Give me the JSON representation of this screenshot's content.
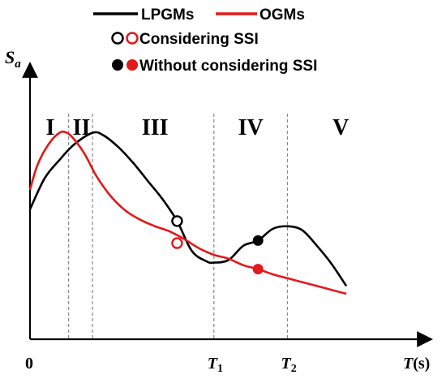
{
  "chart_data": {
    "type": "line",
    "title": "",
    "xlabel": "T(s)",
    "ylabel": "Sa",
    "origin_label": "0",
    "x_ticks": [
      {
        "label": "T1",
        "main": "T",
        "sub": "1",
        "x": 5.0
      },
      {
        "label": "T2",
        "main": "T",
        "sub": "2",
        "x": 7.0
      }
    ],
    "xlim": [
      0,
      10
    ],
    "ylim": [
      0,
      10
    ],
    "grid": false,
    "legend_placement": "top",
    "legend": [
      {
        "kind": "line",
        "name": "LPGMs",
        "color": "#000000"
      },
      {
        "kind": "line",
        "name": "OGMs",
        "color": "#e3191c"
      },
      {
        "kind": "marker",
        "name": "Considering SSI",
        "fill": "hollow"
      },
      {
        "kind": "marker",
        "name": "Without considering SSI",
        "fill": "filled"
      }
    ],
    "regions": [
      {
        "label": "I",
        "x": 0.55
      },
      {
        "label": "II",
        "x": 1.4
      },
      {
        "label": "III",
        "x": 3.4
      },
      {
        "label": "IV",
        "x": 6.0
      },
      {
        "label": "V",
        "x": 8.45
      }
    ],
    "dividers": [
      1.05,
      1.7,
      5.0,
      7.0
    ],
    "series": [
      {
        "name": "LPGMs",
        "color": "#000000",
        "x": [
          0,
          0.4,
          0.8,
          1.2,
          1.7,
          2.0,
          2.4,
          2.8,
          3.2,
          3.6,
          4.0,
          4.4,
          4.8,
          5.0,
          5.4,
          5.8,
          6.2,
          6.6,
          7.0,
          7.4,
          7.8,
          8.2,
          8.6
        ],
        "y": [
          5.0,
          6.2,
          6.9,
          7.5,
          7.95,
          7.85,
          7.4,
          6.8,
          6.1,
          5.4,
          4.55,
          3.4,
          3.0,
          2.95,
          3.05,
          3.6,
          3.8,
          4.25,
          4.35,
          4.2,
          3.6,
          2.9,
          2.05
        ]
      },
      {
        "name": "OGMs",
        "color": "#e3191c",
        "x": [
          0,
          0.2,
          0.5,
          0.8,
          1.0,
          1.2,
          1.5,
          1.8,
          2.2,
          2.6,
          3.0,
          3.4,
          3.8,
          4.2,
          4.6,
          5.0,
          5.4,
          5.8,
          6.2,
          6.6,
          7.0,
          7.4,
          7.8,
          8.2,
          8.6
        ],
        "y": [
          5.75,
          6.7,
          7.5,
          7.95,
          7.95,
          7.7,
          7.1,
          6.3,
          5.5,
          4.95,
          4.6,
          4.35,
          4.15,
          3.85,
          3.5,
          3.25,
          3.1,
          2.85,
          2.7,
          2.5,
          2.35,
          2.2,
          2.05,
          1.9,
          1.75
        ]
      }
    ],
    "points": [
      {
        "series": "LPGMs",
        "condition": "Considering SSI",
        "x": 4.0,
        "y": 4.55,
        "fill": "hollow"
      },
      {
        "series": "OGMs",
        "condition": "Considering SSI",
        "x": 4.0,
        "y": 3.7,
        "fill": "hollow"
      },
      {
        "series": "LPGMs",
        "condition": "Without considering SSI",
        "x": 6.2,
        "y": 3.8,
        "fill": "filled"
      },
      {
        "series": "OGMs",
        "condition": "Without considering SSI",
        "x": 6.2,
        "y": 2.7,
        "fill": "filled"
      }
    ]
  }
}
